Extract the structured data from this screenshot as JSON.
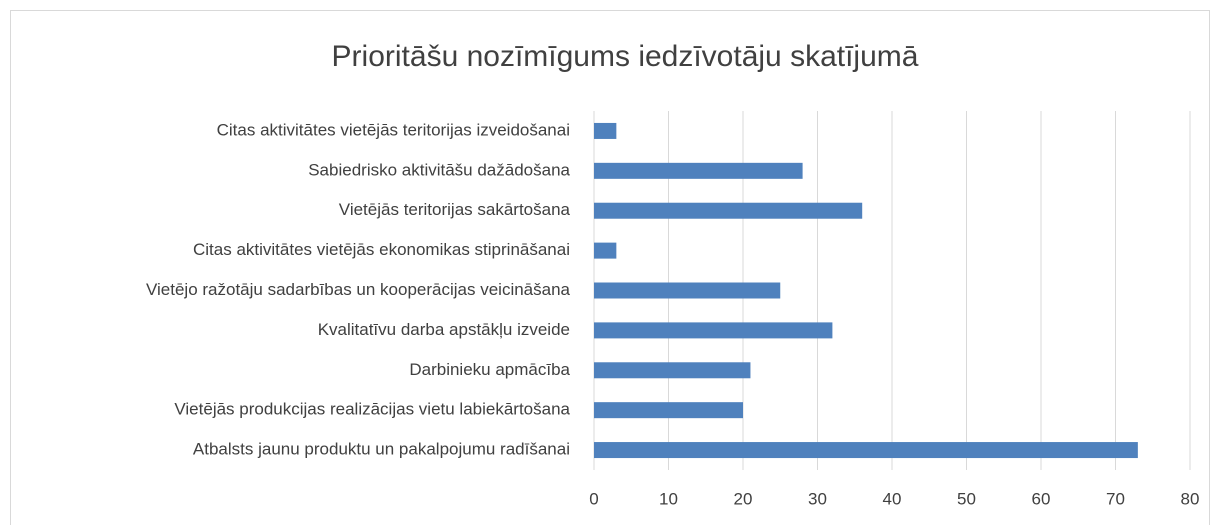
{
  "chart_data": {
    "type": "bar",
    "orientation": "horizontal",
    "title": "Prioritāšu nozīmīgums iedzīvotāju skatījumā",
    "categories": [
      "Citas aktivitātes vietējās teritorijas izveidošanai",
      "Sabiedrisko aktivitāšu dažādošana",
      "Vietējās teritorijas sakārtošana",
      "Citas aktivitātes vietējās ekonomikas stiprināšanai",
      "Vietējo ražotāju sadarbības un kooperācijas veicināšana",
      "Kvalitatīvu darba apstākļu izveide",
      "Darbinieku apmācība",
      "Vietējās produkcijas realizācijas vietu labiekārtošana",
      "Atbalsts jaunu produktu un pakalpojumu radīšanai"
    ],
    "values": [
      3,
      28,
      36,
      3,
      25,
      32,
      21,
      20,
      73
    ],
    "color": "#4f81bd",
    "xlim": [
      0,
      80
    ],
    "xticks": [
      0,
      10,
      20,
      30,
      40,
      50,
      60,
      70,
      80
    ],
    "grid": true
  }
}
